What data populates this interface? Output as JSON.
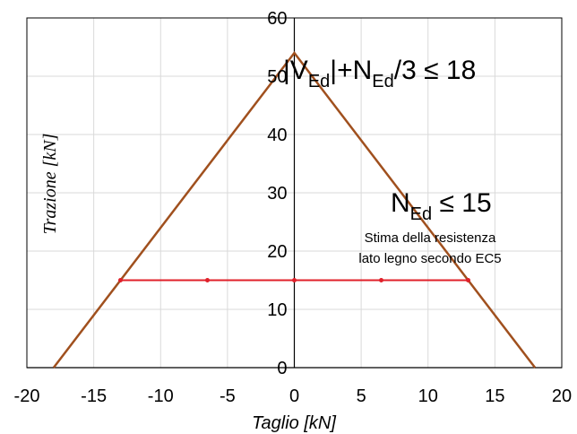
{
  "chart_data": {
    "type": "line",
    "xlabel": "Taglio [kN]",
    "ylabel": "Trazione [kN]",
    "xlim": [
      -20,
      20
    ],
    "ylim": [
      0,
      60
    ],
    "xticks": [
      -20,
      -15,
      -10,
      -5,
      0,
      5,
      10,
      15,
      20
    ],
    "yticks": [
      0,
      10,
      20,
      30,
      40,
      50,
      60
    ],
    "grid": true,
    "series": [
      {
        "color": "#A0501E",
        "x": [
          -18,
          0,
          18
        ],
        "y": [
          0,
          54,
          0
        ]
      },
      {
        "color": "#E0202A",
        "x": [
          -13,
          -6.5,
          0,
          6.5,
          13
        ],
        "y": [
          15,
          15,
          15,
          15,
          15
        ]
      }
    ],
    "annotations": {
      "interaction": {
        "part1": "|V",
        "sub1": "Ed",
        "part2": "|+N",
        "sub2": "Ed",
        "part3": "/3 ≤ 18"
      },
      "tension": {
        "part1": "N",
        "sub1": "Ed",
        "part2": " ≤ 15"
      },
      "note_line1": "Stima della resistenza",
      "note_line2": "lato legno secondo EC5"
    }
  }
}
